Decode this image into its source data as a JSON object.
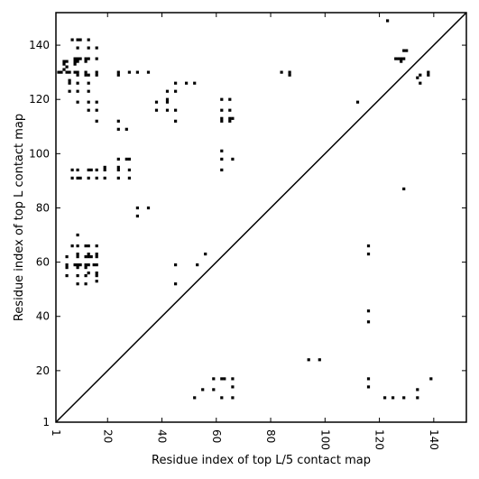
{
  "chart_data": {
    "type": "scatter",
    "xlabel": "Residue index of top L/5 contact map",
    "ylabel": "Residue index of top L contact map",
    "xlim": [
      1,
      152
    ],
    "ylim": [
      1,
      152
    ],
    "x_ticks": [
      1,
      20,
      40,
      60,
      80,
      100,
      120,
      140
    ],
    "y_ticks": [
      1,
      20,
      40,
      60,
      80,
      100,
      120,
      140
    ],
    "diagonal_line": true,
    "grid": false,
    "series": [
      {
        "points": [
          [
            2,
            130
          ],
          [
            3,
            130
          ],
          [
            4,
            131
          ],
          [
            4,
            133
          ],
          [
            4,
            134
          ],
          [
            5,
            130
          ],
          [
            5,
            132
          ],
          [
            5,
            134
          ],
          [
            6,
            130
          ],
          [
            6,
            127
          ],
          [
            6,
            126
          ],
          [
            6,
            123
          ],
          [
            7,
            142
          ],
          [
            8,
            130
          ],
          [
            8,
            133
          ],
          [
            8,
            134
          ],
          [
            8,
            135
          ],
          [
            9,
            142
          ],
          [
            9,
            139
          ],
          [
            9,
            134
          ],
          [
            9,
            135
          ],
          [
            9,
            130
          ],
          [
            9,
            129
          ],
          [
            9,
            126
          ],
          [
            9,
            123
          ],
          [
            9,
            119
          ],
          [
            10,
            142
          ],
          [
            10,
            135
          ],
          [
            12,
            135
          ],
          [
            12,
            134
          ],
          [
            12,
            130
          ],
          [
            12,
            129
          ],
          [
            13,
            142
          ],
          [
            13,
            139
          ],
          [
            13,
            135
          ],
          [
            13,
            129
          ],
          [
            13,
            126
          ],
          [
            13,
            123
          ],
          [
            13,
            119
          ],
          [
            13,
            116
          ],
          [
            16,
            139
          ],
          [
            16,
            135
          ],
          [
            16,
            130
          ],
          [
            16,
            129
          ],
          [
            16,
            119
          ],
          [
            16,
            116
          ],
          [
            16,
            112
          ],
          [
            24,
            130
          ],
          [
            24,
            129
          ],
          [
            24,
            112
          ],
          [
            24,
            109
          ],
          [
            27,
            109
          ],
          [
            28,
            130
          ],
          [
            31,
            130
          ],
          [
            35,
            130
          ],
          [
            38,
            119
          ],
          [
            38,
            116
          ],
          [
            42,
            123
          ],
          [
            42,
            120
          ],
          [
            42,
            119
          ],
          [
            42,
            116
          ],
          [
            45,
            126
          ],
          [
            45,
            123
          ],
          [
            45,
            116
          ],
          [
            45,
            112
          ],
          [
            49,
            126
          ],
          [
            52,
            126
          ],
          [
            62,
            120
          ],
          [
            62,
            116
          ],
          [
            62,
            113
          ],
          [
            62,
            112
          ],
          [
            65,
            120
          ],
          [
            65,
            116
          ],
          [
            65,
            113
          ],
          [
            65,
            112
          ],
          [
            66,
            113
          ],
          [
            84,
            130
          ],
          [
            87,
            130
          ],
          [
            87,
            129
          ],
          [
            112,
            119
          ],
          [
            123,
            149
          ],
          [
            126,
            135
          ],
          [
            127,
            135
          ],
          [
            128,
            135
          ],
          [
            128,
            134
          ],
          [
            129,
            135
          ],
          [
            129,
            138
          ],
          [
            130,
            138
          ],
          [
            134,
            128
          ],
          [
            135,
            129
          ],
          [
            135,
            126
          ],
          [
            138,
            130
          ],
          [
            138,
            129
          ],
          [
            7,
            94
          ],
          [
            7,
            91
          ],
          [
            9,
            94
          ],
          [
            9,
            91
          ],
          [
            10,
            91
          ],
          [
            13,
            94
          ],
          [
            13,
            91
          ],
          [
            14,
            94
          ],
          [
            16,
            94
          ],
          [
            16,
            91
          ],
          [
            19,
            95
          ],
          [
            19,
            94
          ],
          [
            19,
            91
          ],
          [
            24,
            98
          ],
          [
            24,
            95
          ],
          [
            24,
            94
          ],
          [
            24,
            91
          ],
          [
            27,
            98
          ],
          [
            28,
            98
          ],
          [
            28,
            94
          ],
          [
            28,
            91
          ],
          [
            31,
            80
          ],
          [
            31,
            77
          ],
          [
            35,
            80
          ],
          [
            62,
            101
          ],
          [
            62,
            98
          ],
          [
            62,
            94
          ],
          [
            66,
            98
          ],
          [
            129,
            87
          ],
          [
            5,
            62
          ],
          [
            5,
            59
          ],
          [
            5,
            58
          ],
          [
            5,
            55
          ],
          [
            7,
            66
          ],
          [
            8,
            59
          ],
          [
            9,
            70
          ],
          [
            9,
            66
          ],
          [
            9,
            63
          ],
          [
            9,
            62
          ],
          [
            9,
            59
          ],
          [
            9,
            58
          ],
          [
            9,
            55
          ],
          [
            9,
            52
          ],
          [
            10,
            59
          ],
          [
            12,
            66
          ],
          [
            12,
            62
          ],
          [
            12,
            59
          ],
          [
            12,
            58
          ],
          [
            12,
            55
          ],
          [
            12,
            52
          ],
          [
            13,
            66
          ],
          [
            13,
            63
          ],
          [
            13,
            62
          ],
          [
            13,
            59
          ],
          [
            13,
            56
          ],
          [
            14,
            62
          ],
          [
            15,
            59
          ],
          [
            16,
            66
          ],
          [
            16,
            63
          ],
          [
            16,
            62
          ],
          [
            16,
            59
          ],
          [
            16,
            56
          ],
          [
            16,
            55
          ],
          [
            16,
            53
          ],
          [
            45,
            59
          ],
          [
            45,
            52
          ],
          [
            53,
            59
          ],
          [
            56,
            63
          ],
          [
            116,
            66
          ],
          [
            116,
            63
          ],
          [
            116,
            42
          ],
          [
            116,
            38
          ],
          [
            94,
            24
          ],
          [
            98,
            24
          ],
          [
            116,
            17
          ],
          [
            116,
            14
          ],
          [
            52,
            10
          ],
          [
            55,
            13
          ],
          [
            59,
            17
          ],
          [
            59,
            13
          ],
          [
            62,
            17
          ],
          [
            62,
            10
          ],
          [
            63,
            17
          ],
          [
            66,
            17
          ],
          [
            66,
            14
          ],
          [
            66,
            10
          ],
          [
            122,
            10
          ],
          [
            125,
            10
          ],
          [
            129,
            10
          ],
          [
            134,
            13
          ],
          [
            134,
            10
          ],
          [
            139,
            17
          ]
        ]
      }
    ]
  }
}
